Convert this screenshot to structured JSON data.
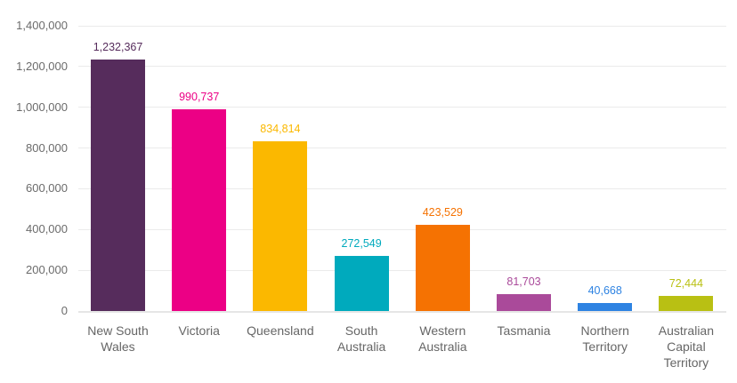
{
  "chart_data": {
    "type": "bar",
    "title": "",
    "xlabel": "",
    "ylabel": "",
    "ylim": [
      0,
      1400000
    ],
    "grid": true,
    "legend": null,
    "y_ticks": [
      "0",
      "200,000",
      "400,000",
      "600,000",
      "800,000",
      "1,000,000",
      "1,200,000",
      "1,400,000"
    ],
    "categories": [
      "New South\nWales",
      "Victoria",
      "Queensland",
      "South\nAustralia",
      "Western\nAustralia",
      "Tasmania",
      "Northern\nTerritory",
      "Australian\nCapital\nTerritory"
    ],
    "values": [
      1232367,
      990737,
      834814,
      272549,
      423529,
      81703,
      40668,
      72444
    ],
    "value_labels": [
      "1,232,367",
      "990,737",
      "834,814",
      "272,549",
      "423,529",
      "81,703",
      "40,668",
      "72,444"
    ],
    "colors": [
      "#562C5C",
      "#EC0085",
      "#FBB800",
      "#00AABD",
      "#F57202",
      "#AA4A9A",
      "#2E83E2",
      "#B9C013"
    ],
    "label_colors": [
      "#562C5C",
      "#EC0085",
      "#FBB800",
      "#00AABD",
      "#F57202",
      "#AA4A9A",
      "#2E83E2",
      "#B9C013"
    ]
  }
}
